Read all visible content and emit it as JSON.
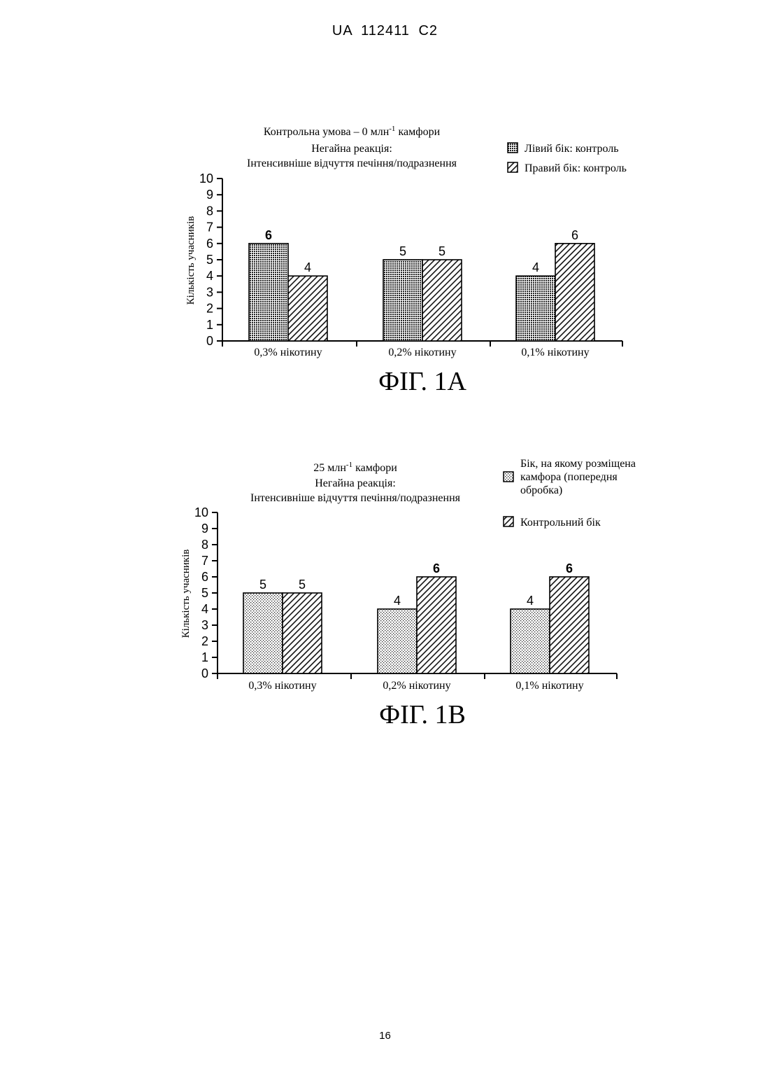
{
  "header": {
    "doc_id": "UA   112411   C2"
  },
  "page_number": "16",
  "chart_data": [
    {
      "type": "bar",
      "title": "Контрольна умова – 0 млн",
      "title_sup": "-1",
      "title_suffix": " камфори",
      "subtitle_1": "Негайна реакція:",
      "subtitle_2": "Інтенсивніше відчуття печіння/подразнення",
      "ylabel": "Кількість учасників",
      "ylim": [
        0,
        10
      ],
      "yticks": [
        "0",
        "1",
        "2",
        "3",
        "4",
        "5",
        "6",
        "7",
        "8",
        "9",
        "10"
      ],
      "categories": [
        "0,3% нікотину",
        "0,2% нікотину",
        "0,1% нікотину"
      ],
      "series": [
        {
          "name": "Лівий бік: контроль",
          "pattern": "grid",
          "values": [
            6,
            5,
            4
          ]
        },
        {
          "name": "Правий бік: контроль",
          "pattern": "hatch",
          "values": [
            4,
            5,
            6
          ]
        }
      ],
      "legend_position": "top-right",
      "caption": "ФІГ. 1А"
    },
    {
      "type": "bar",
      "title": "25 млн",
      "title_sup": "-1",
      "title_suffix": " камфори",
      "subtitle_1": "Негайна реакція:",
      "subtitle_2": "Інтенсивніше відчуття печіння/подразнення",
      "ylabel": "Кількість учасників",
      "ylim": [
        0,
        10
      ],
      "yticks": [
        "0",
        "1",
        "2",
        "3",
        "4",
        "5",
        "6",
        "7",
        "8",
        "9",
        "10"
      ],
      "categories": [
        "0,3% нікотину",
        "0,2% нікотину",
        "0,1% нікотину"
      ],
      "series": [
        {
          "name_lines": [
            "Бік, на якому розміщена",
            "камфора (попередня",
            "обробка)"
          ],
          "pattern": "dots",
          "values": [
            5,
            4,
            4
          ]
        },
        {
          "name": "Контрольний бік",
          "pattern": "hatch",
          "values": [
            5,
            6,
            6
          ]
        }
      ],
      "legend_position": "top-right",
      "caption": "ФІГ. 1В"
    }
  ]
}
